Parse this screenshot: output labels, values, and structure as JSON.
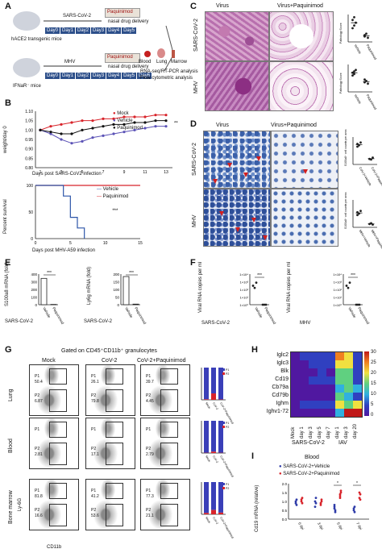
{
  "panels": {
    "A": "A",
    "B": "B",
    "C": "C",
    "D": "D",
    "E": "E",
    "F": "F",
    "G": "G",
    "H": "H",
    "I": "I"
  },
  "A": {
    "row1": {
      "virus": "SARS-CoV-2",
      "drug": "Paquinimod",
      "mouse": "hACE2 transgenic mice",
      "delivery": "nasal drug delivery"
    },
    "row2": {
      "virus": "MHV",
      "drug": "Paquinimod",
      "mouse": "IFNaR⁻ mice",
      "delivery": "nasal drug delivery"
    },
    "days": [
      "Day0",
      "Day1",
      "Day2",
      "Day3",
      "Day4",
      "Day5",
      "Day6"
    ],
    "organs": {
      "blood": "Blood",
      "lung": "Lung",
      "marrow": "Marrow"
    },
    "analysis1": "RNA-seq/RT-PCR analysis",
    "analysis2": "Flow cytometric analysis"
  },
  "B": {
    "weight": {
      "ylabel": "weight/day 0",
      "xlabel": "Days post SARS-CoV2 infection",
      "yticks": [
        "1.10",
        "1.05",
        "1.00",
        "0.95",
        "0.90",
        "0.85",
        "0.80"
      ],
      "xticks": [
        "1",
        "3",
        "5",
        "7",
        "9",
        "11",
        "13"
      ],
      "legend": [
        "Mock",
        "Vehicle",
        "Paquinimod"
      ],
      "sig": "**"
    },
    "survival": {
      "ylabel": "Percent survival",
      "xlabel": "Days post MHV-A59 infection",
      "yticks": [
        "100",
        "50",
        "0"
      ],
      "xticks": [
        "0",
        "5",
        "10",
        "15"
      ],
      "legend": [
        "Vehicle",
        "Paquinimod"
      ],
      "sig": "***"
    }
  },
  "C": {
    "cols": [
      "Virus",
      "Virus+Paquinimod"
    ],
    "rows": [
      "SARS-CoV-2",
      "MHV"
    ],
    "ylabel": "Pathology Score",
    "xcats": [
      "Vehicle",
      "Paquinimod"
    ]
  },
  "D": {
    "cols": [
      "Virus",
      "Virus+Paquinimod"
    ],
    "rows": [
      "SARS-CoV-2",
      "MHV"
    ],
    "ylabel": "S100a8⁺ cell counts per area",
    "xcats1": [
      "CoV-2+Vehicle",
      "CoV-2+Paquinimod"
    ],
    "xcats2": [
      "MHV+Vehicle",
      "MHV+Paquinimod"
    ]
  },
  "E": {
    "ylabel1": "S100a8 mRNA (fold)",
    "ylabel2": "Ly6g mRNA (fold)",
    "yticks1": [
      "400",
      "300",
      "200",
      "100",
      "0"
    ],
    "yticks2": [
      "200",
      "150",
      "100",
      "50",
      "0"
    ],
    "group": "SARS-CoV-2",
    "xcats": [
      "Vehicle",
      "Paquinimod"
    ],
    "sig": "***"
  },
  "F": {
    "ylabel": "Viral RNA copies per ml",
    "yticks": [
      "1×10⁴",
      "1×10³",
      "1×10²",
      "1×10¹",
      "1×10⁰"
    ],
    "group1": "SARS-CoV-2",
    "group2": "MHV",
    "xcats": [
      "Vehicle",
      "Paquinimod"
    ],
    "sig": "***"
  },
  "G": {
    "title": "Gated on CD45⁺CD11b⁺ granulocytes",
    "cols": [
      "Mock",
      "CoV-2",
      "CoV-2+Paquinimod"
    ],
    "rows": [
      "Lung",
      "Blood",
      "Bone marrow"
    ],
    "yaxis": "Ly-6G",
    "xaxis": "CD11b",
    "gates": [
      [
        [
          "P1",
          "50.4",
          "P2",
          "6.87"
        ],
        [
          "P1",
          "26.1",
          "P2",
          "79.8"
        ],
        [
          "P1",
          "39.7",
          "P2",
          "4.45"
        ]
      ],
      [
        [
          "P1",
          "",
          "P2",
          "2.81"
        ],
        [
          "P1",
          "",
          "P2",
          "17.1"
        ],
        [
          "P1",
          "",
          "P2",
          "2.79"
        ]
      ],
      [
        [
          "P1",
          "81.8",
          "P2",
          "16.6"
        ],
        [
          "P1",
          "41.2",
          "P2",
          "53.6"
        ],
        [
          "P1",
          "77.3",
          "P2",
          "21.1"
        ]
      ]
    ],
    "legend": [
      "P1",
      "P2"
    ],
    "barcats": [
      "Mock",
      "CoV-2",
      "CoV-2+Paquinimod"
    ]
  },
  "H": {
    "genes": [
      "Iglc2",
      "Iglc3",
      "Blk",
      "Cd19",
      "Cb79a",
      "Cd79b",
      "Ighm",
      "Ighv1-72"
    ],
    "days": [
      "Mock",
      "day 1",
      "day 3",
      "day 5",
      "day 7",
      "day 1",
      "day 3",
      "day 20"
    ],
    "groups": [
      "SARS-CoV-2",
      "IAV"
    ],
    "scale": [
      "30",
      "25",
      "20",
      "15",
      "10",
      "5",
      "0"
    ]
  },
  "I": {
    "title": "Blood",
    "legend": [
      "SARS-CoV-2+Vehicle",
      "SARS-CoV-2+Paquinimod"
    ],
    "ylabel": "Cd19 mRNA (relative)",
    "yticks": [
      "2.0",
      "1.5",
      "1.0",
      "0.5",
      "0.0"
    ],
    "xcats": [
      "0 dpi",
      "3 dpi",
      "5 dpi",
      "7 dpi"
    ],
    "sig": "*"
  }
}
